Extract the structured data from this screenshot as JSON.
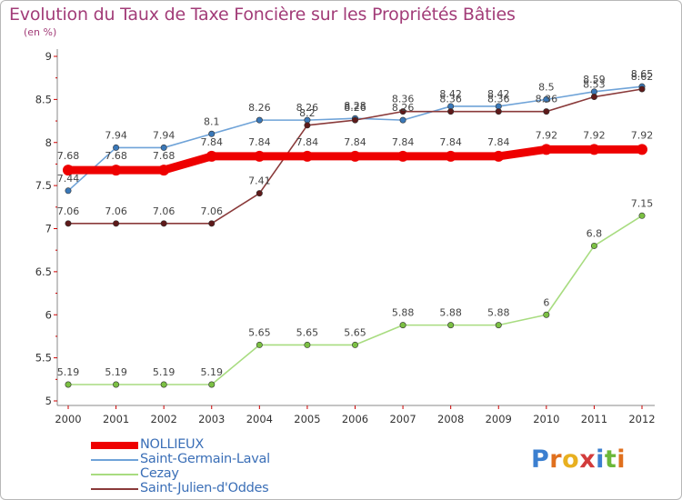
{
  "title": "Evolution du Taux de Taxe Foncière sur les Propriétés Bâties",
  "subtitle": "(en %)",
  "logo": {
    "text": "Proxiti",
    "letter_colors": [
      "#3b7fd0",
      "#e0701e",
      "#e8b020",
      "#d23c3c",
      "#3b7fd0",
      "#6cb83a",
      "#e0701e"
    ]
  },
  "colors": {
    "axis": "#cc0000",
    "grid_label": "#333333",
    "label": "#444444"
  },
  "chart_data": {
    "type": "line",
    "title": "Evolution du Taux de Taxe Foncière sur les Propriétés Bâties",
    "subtitle": "(en %)",
    "xlabel": "",
    "ylabel": "",
    "x": [
      "2000",
      "2001",
      "2002",
      "2003",
      "2004",
      "2005",
      "2006",
      "2007",
      "2008",
      "2009",
      "2010",
      "2011",
      "2012"
    ],
    "ylim": [
      5,
      9
    ],
    "yticks": [
      "5",
      "5.5",
      "6",
      "6.5",
      "7",
      "7.5",
      "8",
      "8.5",
      "9"
    ],
    "grid": false,
    "legend_position": "bottom-left",
    "series": [
      {
        "name": "Saint-Germain-Laval",
        "color": "#6fa3d8",
        "marker_color": "#3a78b8",
        "values": [
          7.44,
          7.94,
          7.94,
          8.1,
          8.26,
          8.26,
          8.28,
          8.26,
          8.42,
          8.42,
          8.5,
          8.59,
          8.65
        ],
        "labels": [
          "7.44",
          "7.94",
          "7.94",
          "8.1",
          "8.26",
          "8.26",
          "8.28",
          "8.26",
          "8.42",
          "8.42",
          "8.5",
          "8.59",
          "8.65"
        ]
      },
      {
        "name": "Saint-Julien-d'Oddes",
        "color": "#8a3a3a",
        "marker_color": "#5e1a1a",
        "values": [
          7.06,
          7.06,
          7.06,
          7.06,
          7.41,
          8.2,
          8.26,
          8.36,
          8.36,
          8.36,
          8.36,
          8.53,
          8.62
        ],
        "labels": [
          "7.06",
          "7.06",
          "7.06",
          "7.06",
          "7.41",
          "8.2",
          "8.26",
          "8.36",
          "8.36",
          "8.36",
          "8.36",
          "8.53",
          "8.62"
        ]
      },
      {
        "name": "Cezay",
        "color": "#a8dc80",
        "marker_color": "#7bc043",
        "values": [
          5.19,
          5.19,
          5.19,
          5.19,
          5.65,
          5.65,
          5.65,
          5.88,
          5.88,
          5.88,
          6,
          6.8,
          7.15
        ],
        "labels": [
          "5.19",
          "5.19",
          "5.19",
          "5.19",
          "5.65",
          "5.65",
          "5.65",
          "5.88",
          "5.88",
          "5.88",
          "6",
          "6.8",
          "7.15"
        ]
      },
      {
        "name": "NOLLIEUX",
        "color": "#ee0000",
        "marker_color": "#ee0000",
        "values": [
          7.68,
          7.68,
          7.68,
          7.84,
          7.84,
          7.84,
          7.84,
          7.84,
          7.84,
          7.84,
          7.92,
          7.92,
          7.92
        ],
        "labels": [
          "7.68",
          "7.68",
          "7.68",
          "7.84",
          "7.84",
          "7.84",
          "7.84",
          "7.84",
          "7.84",
          "7.84",
          "7.92",
          "7.92",
          "7.92"
        ]
      }
    ],
    "legend": [
      "NOLLIEUX",
      "Saint-Germain-Laval",
      "Cezay",
      "Saint-Julien-d'Oddes"
    ]
  }
}
